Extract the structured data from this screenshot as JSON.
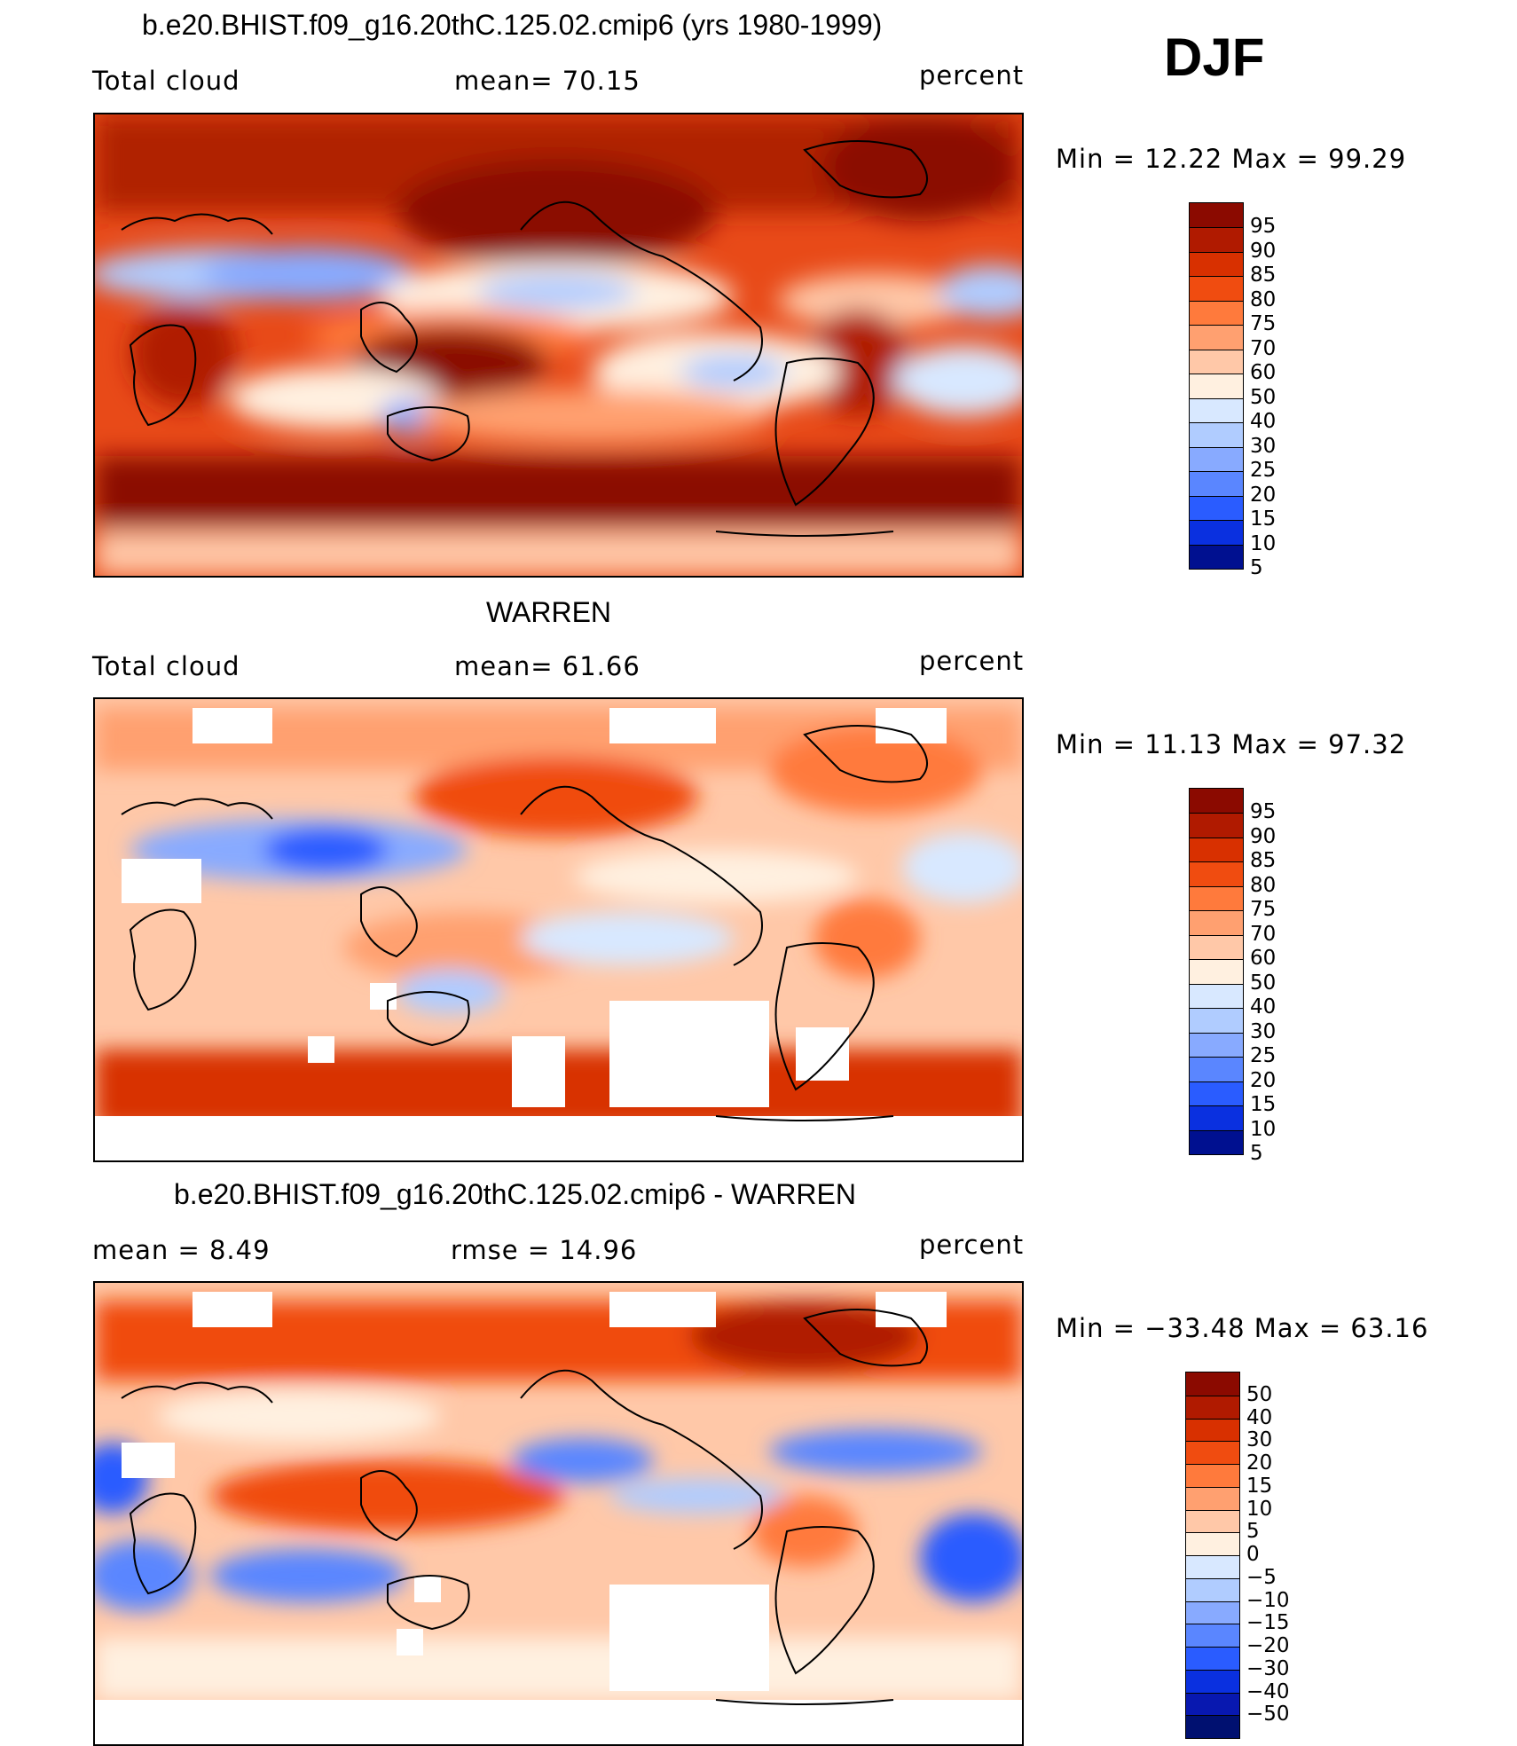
{
  "season": "DJF",
  "panels": [
    {
      "title": "b.e20.BHIST.f09_g16.20thC.125.02.cmip6 (yrs 1980-1999)",
      "left_label": "Total cloud",
      "center_label": "mean=   70.15",
      "units": "percent",
      "minmax": "Min  =   12.22  Max  =    99.29",
      "colorbar": {
        "ticks": [
          "95",
          "90",
          "85",
          "80",
          "75",
          "70",
          "60",
          "50",
          "40",
          "30",
          "25",
          "20",
          "15",
          "10",
          "5"
        ],
        "colors": [
          "#8b0a00",
          "#b01a00",
          "#d83000",
          "#f04c10",
          "#ff7a3c",
          "#ffa070",
          "#ffc8a8",
          "#fff0e0",
          "#d8e8ff",
          "#b0ccff",
          "#88aaff",
          "#5a86ff",
          "#2a5cff",
          "#0a30e0",
          "#001090"
        ]
      }
    },
    {
      "title": "WARREN",
      "left_label": "Total cloud",
      "center_label": "mean=   61.66",
      "units": "percent",
      "minmax": "Min  =   11.13  Max  =    97.32",
      "colorbar": {
        "ticks": [
          "95",
          "90",
          "85",
          "80",
          "75",
          "70",
          "60",
          "50",
          "40",
          "30",
          "25",
          "20",
          "15",
          "10",
          "5"
        ],
        "colors": [
          "#8b0a00",
          "#b01a00",
          "#d83000",
          "#f04c10",
          "#ff7a3c",
          "#ffa070",
          "#ffc8a8",
          "#fff0e0",
          "#d8e8ff",
          "#b0ccff",
          "#88aaff",
          "#5a86ff",
          "#2a5cff",
          "#0a30e0",
          "#001090"
        ]
      }
    },
    {
      "title": "b.e20.BHIST.f09_g16.20thC.125.02.cmip6 - WARREN",
      "left_label": "mean  =     8.49",
      "center_label": "rmse  =    14.96",
      "units": "percent",
      "minmax": "Min  = −33.48  Max  =    63.16",
      "colorbar": {
        "ticks": [
          "50",
          "40",
          "30",
          "20",
          "15",
          "10",
          "5",
          "0",
          "−5",
          "−10",
          "−15",
          "−20",
          "−30",
          "−40",
          "−50"
        ],
        "colors": [
          "#8b0a00",
          "#b01a00",
          "#d83000",
          "#f04c10",
          "#ff7a3c",
          "#ffa070",
          "#ffc8a8",
          "#fff0e0",
          "#d8e8ff",
          "#b0ccff",
          "#88aaff",
          "#5a86ff",
          "#2a5cff",
          "#0a30e0",
          "#0818b0",
          "#001070"
        ]
      }
    }
  ]
}
